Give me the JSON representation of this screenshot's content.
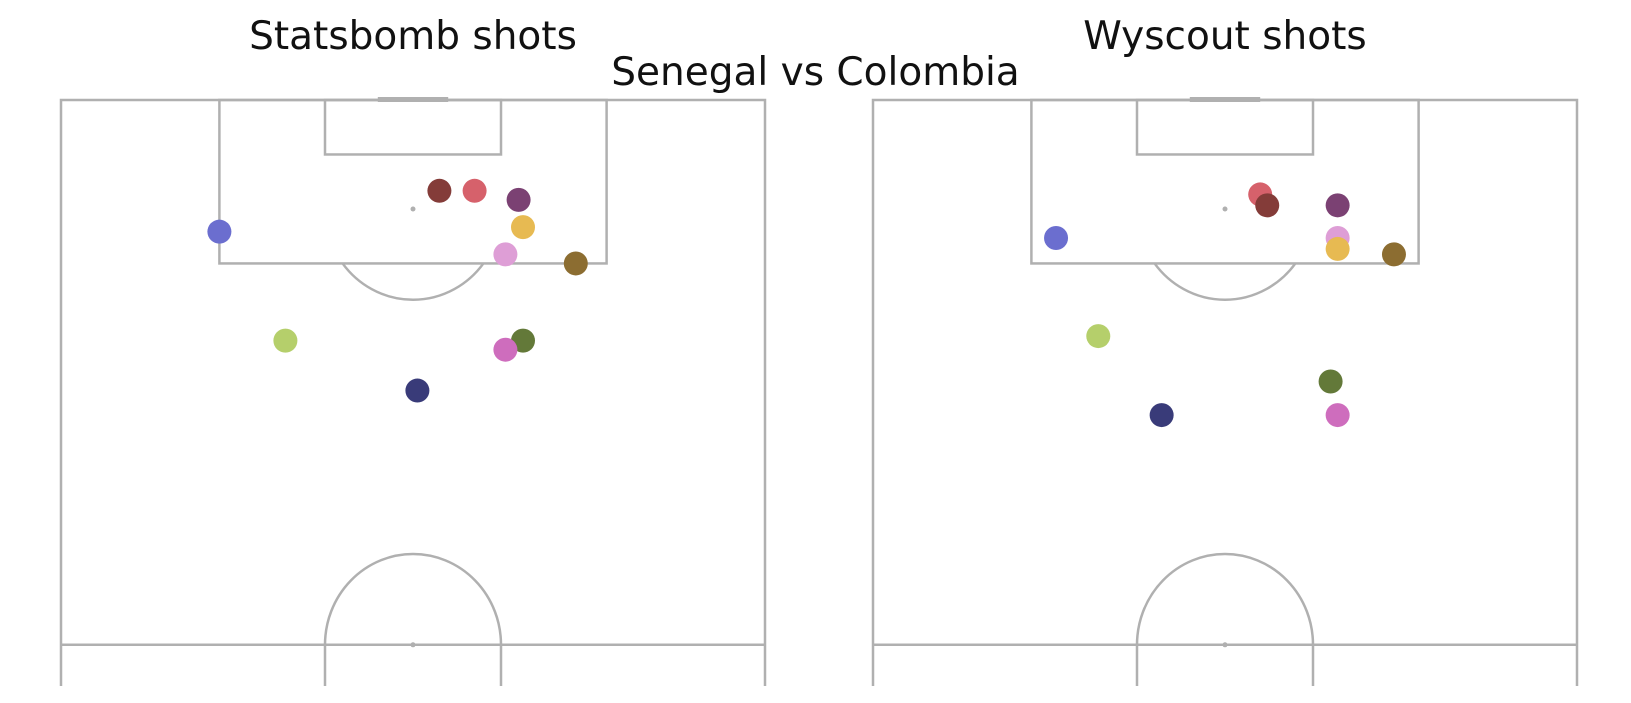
{
  "suptitle": "Senegal vs Colombia",
  "chart_data": [
    {
      "type": "scatter",
      "title": "Statsbomb shots",
      "pitch": {
        "length": 120,
        "width": 80,
        "half": true
      },
      "points": [
        {
          "x": 110.0,
          "y": 43.0,
          "color": "#843c39"
        },
        {
          "x": 110.0,
          "y": 47.0,
          "color": "#d6616b"
        },
        {
          "x": 109.0,
          "y": 52.0,
          "color": "#7b4173"
        },
        {
          "x": 106.0,
          "y": 52.5,
          "color": "#e7ba52"
        },
        {
          "x": 105.5,
          "y": 18.0,
          "color": "#6b6ecf"
        },
        {
          "x": 103.0,
          "y": 50.5,
          "color": "#de9ed6"
        },
        {
          "x": 102.0,
          "y": 58.5,
          "color": "#8c6d31"
        },
        {
          "x": 93.5,
          "y": 25.5,
          "color": "#b5cf6b"
        },
        {
          "x": 93.5,
          "y": 52.5,
          "color": "#637939"
        },
        {
          "x": 92.5,
          "y": 50.5,
          "color": "#ce6dbd"
        },
        {
          "x": 88.0,
          "y": 40.5,
          "color": "#393b79"
        }
      ]
    },
    {
      "type": "scatter",
      "title": "Wyscout shots",
      "pitch": {
        "length": 120,
        "width": 80,
        "half": true
      },
      "points": [
        {
          "x": 109.6,
          "y": 44.0,
          "color": "#d6616b"
        },
        {
          "x": 108.4,
          "y": 44.8,
          "color": "#843c39"
        },
        {
          "x": 108.4,
          "y": 52.8,
          "color": "#7b4173"
        },
        {
          "x": 104.8,
          "y": 20.8,
          "color": "#6b6ecf"
        },
        {
          "x": 104.8,
          "y": 52.8,
          "color": "#de9ed6"
        },
        {
          "x": 103.6,
          "y": 52.8,
          "color": "#e7ba52"
        },
        {
          "x": 103.0,
          "y": 59.2,
          "color": "#8c6d31"
        },
        {
          "x": 94.0,
          "y": 25.6,
          "color": "#b5cf6b"
        },
        {
          "x": 89.0,
          "y": 52.0,
          "color": "#637939"
        },
        {
          "x": 85.3,
          "y": 32.8,
          "color": "#393b79"
        },
        {
          "x": 85.3,
          "y": 52.8,
          "color": "#ce6dbd"
        }
      ]
    }
  ]
}
